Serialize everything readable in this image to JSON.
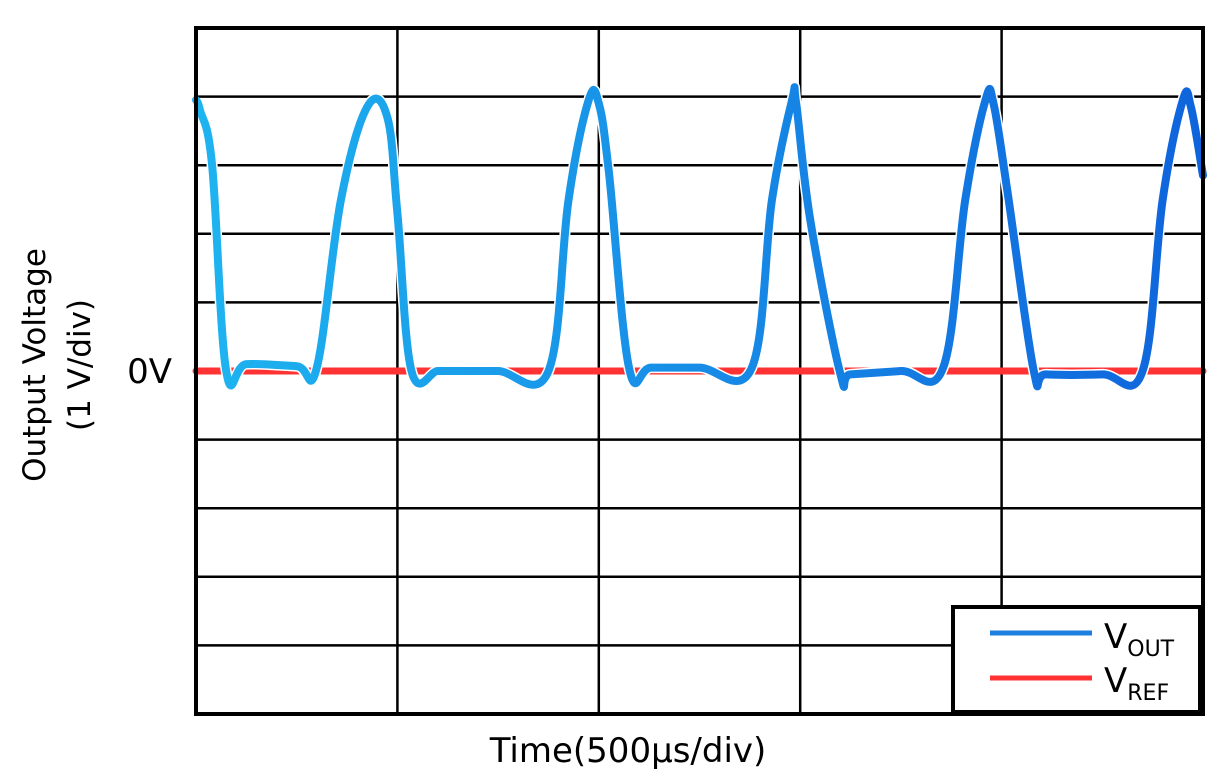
{
  "chart_data": {
    "type": "line",
    "xlabel": "Time(500µs/div)",
    "ylabel_line1": "Output Voltage",
    "ylabel_line2": "(1 V/div)",
    "zero_label": "0V",
    "x_divisions": 5,
    "y_divisions": 10,
    "xlim": [
      0,
      5
    ],
    "ylim": [
      -5,
      5
    ],
    "grid": true,
    "legend_position": "bottom-right",
    "series": [
      {
        "name": "VOUT",
        "label_main": "V",
        "label_sub": "OUT",
        "color": "#1f7fe0",
        "gradient_start": "#1eb4f0",
        "gradient_end": "#0f64dc",
        "x": [
          0,
          0.02,
          0.08,
          0.15,
          0.25,
          0.5,
          0.6,
          0.72,
          0.85,
          0.95,
          1.0,
          1.07,
          1.2,
          1.3,
          1.5,
          1.75,
          1.85,
          1.95,
          2.0,
          2.05,
          2.15,
          2.26,
          2.5,
          2.76,
          2.86,
          2.96,
          2.98,
          3.05,
          3.2,
          3.25,
          3.5,
          3.71,
          3.82,
          3.92,
          3.96,
          4.03,
          4.16,
          4.22,
          4.5,
          4.7,
          4.8,
          4.9,
          4.94,
          5.0
        ],
        "y": [
          3.95,
          3.8,
          3.0,
          0.0,
          0.1,
          0.07,
          0.05,
          2.5,
          3.85,
          3.7,
          2.3,
          0.0,
          0.0,
          0.0,
          0.0,
          0.0,
          2.5,
          3.95,
          3.9,
          2.9,
          0.05,
          0.05,
          0.05,
          0.05,
          2.5,
          3.95,
          3.9,
          2.2,
          -0.05,
          -0.05,
          0.0,
          0.05,
          2.5,
          3.95,
          3.9,
          2.6,
          0.0,
          -0.05,
          -0.05,
          0.0,
          2.5,
          3.95,
          3.85,
          2.85
        ]
      },
      {
        "name": "VREF",
        "label_main": "V",
        "label_sub": "REF",
        "color": "#ff3333",
        "x": [
          0,
          5
        ],
        "y": [
          0,
          0
        ]
      }
    ]
  }
}
